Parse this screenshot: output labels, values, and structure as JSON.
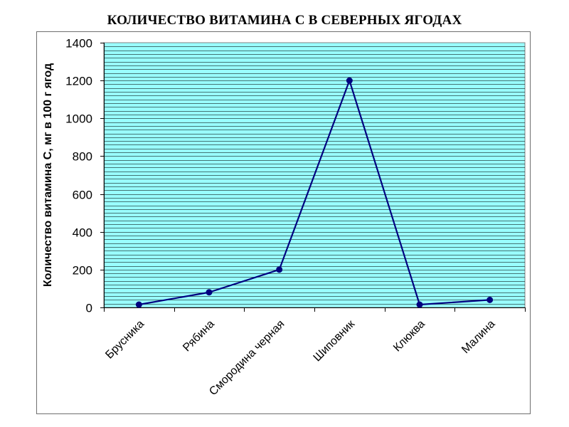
{
  "chart_data": {
    "type": "line",
    "title": "КОЛИЧЕСТВО ВИТАМИНА С В СЕВЕРНЫХ ЯГОДАХ",
    "xlabel": "",
    "ylabel": "Количество витамина С, мг в 100 г ягод",
    "categories": [
      "Брусника",
      "Рябина",
      "Смородина черная",
      "Шиповник",
      "Клюква",
      "Малина"
    ],
    "series": [
      {
        "values": [
          15,
          80,
          200,
          1200,
          15,
          40
        ]
      }
    ],
    "ylim": [
      0,
      1400
    ],
    "yticks": [
      "0",
      "200",
      "400",
      "600",
      "800",
      "1000",
      "1200",
      "1400"
    ],
    "grid": true,
    "legend": "none",
    "colors": {
      "plot_background": "#99ffff",
      "gridline": "#000000",
      "line": "#000080",
      "marker": "#000080",
      "frame": "#6f6f6f"
    }
  }
}
